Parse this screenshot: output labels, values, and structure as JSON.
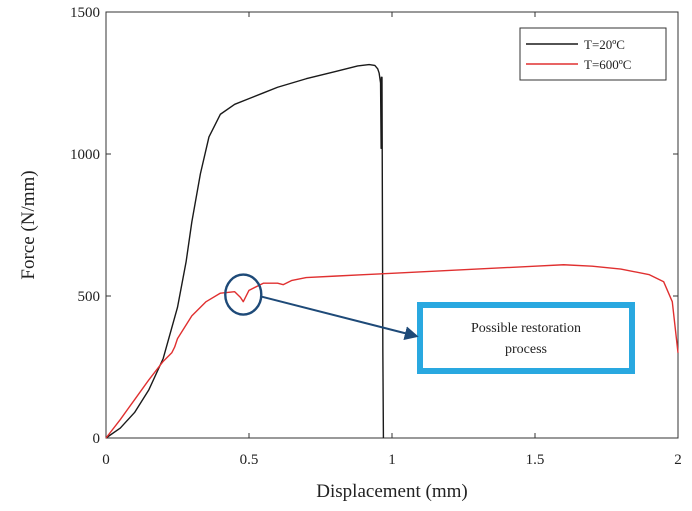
{
  "chart_data": {
    "type": "line",
    "title": "",
    "xlabel": "Displacement (mm)",
    "ylabel": "Force (N/mm)",
    "xlim": [
      0,
      2
    ],
    "ylim": [
      0,
      1500
    ],
    "xticks": [
      0,
      0.5,
      1,
      1.5,
      2
    ],
    "xtick_labels": [
      "0",
      "0.5",
      "1",
      "1.5",
      "2"
    ],
    "yticks": [
      0,
      500,
      1000,
      1500
    ],
    "ytick_labels": [
      "0",
      "500",
      "1000",
      "1500"
    ],
    "grid": false,
    "legend_position": "top-right",
    "series": [
      {
        "name": "T=20ºC",
        "color": "#1a1a1a",
        "x": [
          0,
          0.05,
          0.1,
          0.15,
          0.2,
          0.25,
          0.28,
          0.3,
          0.33,
          0.36,
          0.4,
          0.45,
          0.5,
          0.55,
          0.6,
          0.7,
          0.8,
          0.88,
          0.92,
          0.94,
          0.95,
          0.955,
          0.96,
          0.962,
          0.963,
          0.965,
          0.968,
          0.97
        ],
        "y": [
          0,
          35,
          90,
          170,
          280,
          460,
          620,
          760,
          930,
          1060,
          1140,
          1175,
          1195,
          1215,
          1235,
          1265,
          1290,
          1310,
          1315,
          1312,
          1300,
          1285,
          1250,
          1020,
          1270,
          1270,
          300,
          0
        ]
      },
      {
        "name": "T=600ºC",
        "color": "#e03030",
        "x": [
          0,
          0.05,
          0.1,
          0.15,
          0.2,
          0.23,
          0.24,
          0.25,
          0.3,
          0.35,
          0.4,
          0.45,
          0.47,
          0.48,
          0.5,
          0.55,
          0.6,
          0.62,
          0.65,
          0.7,
          0.8,
          0.9,
          1.0,
          1.2,
          1.4,
          1.5,
          1.6,
          1.7,
          1.8,
          1.9,
          1.95,
          1.98,
          2.0
        ],
        "y": [
          0,
          65,
          135,
          205,
          270,
          300,
          320,
          350,
          430,
          480,
          510,
          515,
          495,
          480,
          520,
          545,
          545,
          540,
          555,
          565,
          570,
          575,
          580,
          590,
          600,
          605,
          610,
          605,
          595,
          575,
          550,
          480,
          300
        ]
      }
    ],
    "annotations": {
      "callout_text_line1": "Possible restoration",
      "callout_text_line2": "process",
      "circle_at": {
        "x": 0.48,
        "y": 505
      },
      "border_color": "#29a8e0",
      "arrow_color": "#1e4a78"
    }
  }
}
